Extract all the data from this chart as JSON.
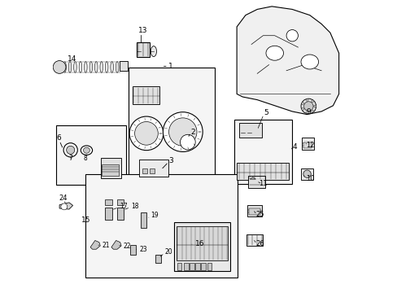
{
  "title": "",
  "bg_color": "#ffffff",
  "line_color": "#000000",
  "text_color": "#000000",
  "fig_width": 4.89,
  "fig_height": 3.6,
  "dpi": 100
}
